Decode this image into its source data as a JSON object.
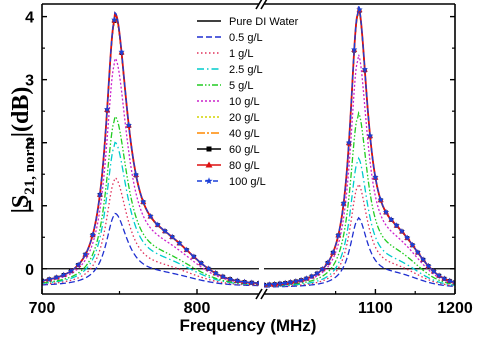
{
  "chart_data": {
    "type": "line",
    "xlabel": "Frequency (MHz)",
    "ylabel": "|S21, norm|(dB)",
    "axis_break": true,
    "panels": [
      {
        "xlim": [
          700,
          840
        ],
        "x_ticks": [
          700,
          800
        ]
      },
      {
        "xlim": [
          960,
          1200
        ],
        "x_ticks": [
          1100,
          1200
        ]
      }
    ],
    "ylim": [
      -0.4,
      4.2
    ],
    "y_ticks": [
      0,
      1,
      2,
      3,
      4
    ],
    "legend_position": "top-center",
    "series": [
      {
        "name": "Pure DI Water",
        "color": "#000000",
        "dash": "",
        "marker": "none",
        "peaks": [
          0,
          0
        ]
      },
      {
        "name": "0.5 g/L",
        "color": "#1f2fd0",
        "dash": "6,3",
        "marker": "none",
        "peaks": [
          0.85,
          0.78
        ]
      },
      {
        "name": "1 g/L",
        "color": "#e0305a",
        "dash": "1.5,2.5",
        "marker": "none",
        "peaks": [
          1.4,
          1.3
        ]
      },
      {
        "name": "2.5 g/L",
        "color": "#00cccc",
        "dash": "7,3,1.5,3",
        "marker": "none",
        "peaks": [
          1.95,
          1.7
        ]
      },
      {
        "name": "5 g/L",
        "color": "#22cc22",
        "dash": "6,2,1.5,2,1.5,2",
        "marker": "none",
        "peaks": [
          2.35,
          2.4
        ]
      },
      {
        "name": "10 g/L",
        "color": "#cc22cc",
        "dash": "2,2",
        "marker": "none",
        "peaks": [
          3.25,
          3.3
        ]
      },
      {
        "name": "20 g/L",
        "color": "#d4d400",
        "dash": "2,2",
        "marker": "none",
        "peaks": [
          3.9,
          4.0
        ]
      },
      {
        "name": "40 g/L",
        "color": "#ff8800",
        "dash": "8,2,2,2",
        "marker": "none",
        "peaks": [
          3.93,
          4.02
        ]
      },
      {
        "name": "60 g/L",
        "color": "#000000",
        "dash": "",
        "marker": "square",
        "peaks": [
          3.94,
          4.03
        ]
      },
      {
        "name": "80 g/L",
        "color": "#dd1111",
        "dash": "",
        "marker": "triangle",
        "peaks": [
          3.95,
          4.04
        ]
      },
      {
        "name": "100 g/L",
        "color": "#1a3fd8",
        "dash": "5,3",
        "marker": "star",
        "peaks": [
          3.96,
          4.05
        ]
      }
    ],
    "resonances": [
      {
        "center": 747,
        "baseline": -0.28
      },
      {
        "center": 1078,
        "baseline": -0.3
      }
    ]
  }
}
